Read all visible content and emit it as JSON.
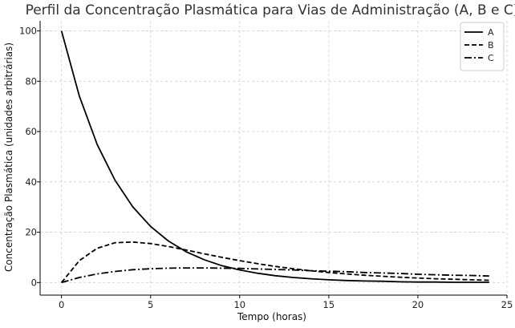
{
  "chart_data": {
    "type": "line",
    "title": "Perfil da Concentração Plasmática para Vias de Administração (A, B e C)",
    "xlabel": "Tempo (horas)",
    "ylabel": "Concentração Plasmática (unidades arbitrárias)",
    "xlim": [
      -1.2,
      25
    ],
    "ylim": [
      -5,
      104
    ],
    "xticks": [
      0,
      5,
      10,
      15,
      20,
      25
    ],
    "yticks": [
      0,
      20,
      40,
      60,
      80,
      100
    ],
    "grid": true,
    "legend_position": "top-right",
    "series": [
      {
        "name": "A",
        "style": "solid",
        "color": "#000000",
        "x": [
          0,
          1,
          2,
          3,
          4,
          5,
          6,
          7,
          8,
          9,
          10,
          11,
          12,
          13,
          14,
          15,
          16,
          17,
          18,
          19,
          20,
          21,
          22,
          23,
          24
        ],
        "y": [
          100,
          74.1,
          54.9,
          40.7,
          30.1,
          22.3,
          16.5,
          12.2,
          9.1,
          6.7,
          5.0,
          3.7,
          2.7,
          2.0,
          1.5,
          1.1,
          0.8,
          0.6,
          0.5,
          0.3,
          0.2,
          0.2,
          0.1,
          0.1,
          0.1
        ]
      },
      {
        "name": "B",
        "style": "dashed",
        "color": "#000000",
        "x": [
          0,
          1,
          2,
          3,
          4,
          5,
          6,
          7,
          8,
          9,
          10,
          11,
          12,
          13,
          14,
          15,
          16,
          17,
          18,
          19,
          20,
          21,
          22,
          23,
          24
        ],
        "y": [
          0,
          8.7,
          13.6,
          15.8,
          16.1,
          15.5,
          14.3,
          12.9,
          11.4,
          10.0,
          8.7,
          7.5,
          6.4,
          5.5,
          4.7,
          4.0,
          3.4,
          2.9,
          2.5,
          2.1,
          1.8,
          1.5,
          1.3,
          1.1,
          0.9
        ]
      },
      {
        "name": "C",
        "style": "dashdot",
        "color": "#000000",
        "x": [
          0,
          1,
          2,
          3,
          4,
          5,
          6,
          7,
          8,
          9,
          10,
          11,
          12,
          13,
          14,
          15,
          16,
          17,
          18,
          19,
          20,
          21,
          22,
          23,
          24
        ],
        "y": [
          0,
          2.0,
          3.4,
          4.4,
          5.1,
          5.5,
          5.7,
          5.8,
          5.8,
          5.7,
          5.6,
          5.4,
          5.2,
          5.0,
          4.7,
          4.5,
          4.3,
          4.0,
          3.8,
          3.6,
          3.3,
          3.1,
          2.9,
          2.8,
          2.6
        ]
      }
    ]
  }
}
